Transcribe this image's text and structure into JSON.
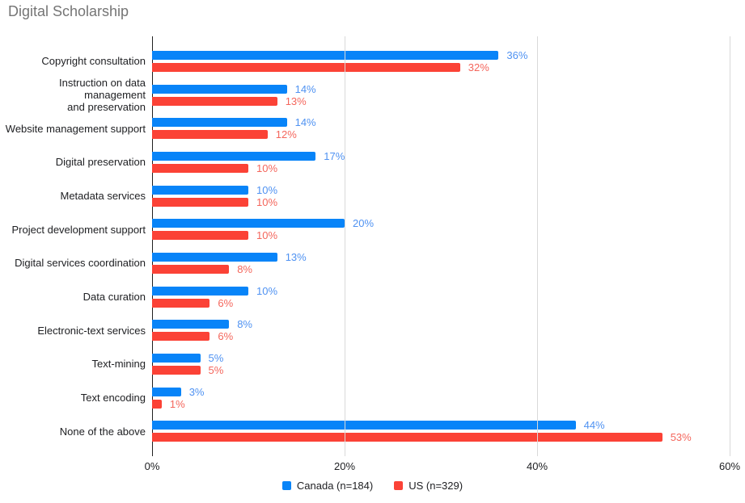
{
  "chart_data": {
    "type": "bar",
    "orientation": "horizontal",
    "title": "Digital Scholarship",
    "title_color": "#757575",
    "categories": [
      "Copyright consultation",
      "Instruction on data management\nand preservation",
      "Website management support",
      "Digital preservation",
      "Metadata services",
      "Project development support",
      "Digital services coordination",
      "Data curation",
      "Electronic-text services",
      "Text-mining",
      "Text encoding",
      "None of the above"
    ],
    "series": [
      {
        "name": "Canada (n=184)",
        "color": "#0884f8",
        "label_color": "#4f92f2",
        "values": [
          36,
          14,
          14,
          17,
          10,
          20,
          13,
          10,
          8,
          5,
          3,
          44
        ]
      },
      {
        "name": "US (n=329)",
        "color": "#fb4236",
        "label_color": "#f4665c",
        "values": [
          32,
          13,
          12,
          10,
          10,
          10,
          8,
          6,
          6,
          5,
          1,
          53
        ]
      }
    ],
    "value_suffix": "%",
    "xlim": [
      0,
      60
    ],
    "x_ticks": [
      0,
      20,
      40,
      60
    ],
    "x_tick_labels": [
      "0%",
      "20%",
      "40%",
      "60%"
    ],
    "grid": "vertical-only",
    "legend_position": "bottom"
  }
}
